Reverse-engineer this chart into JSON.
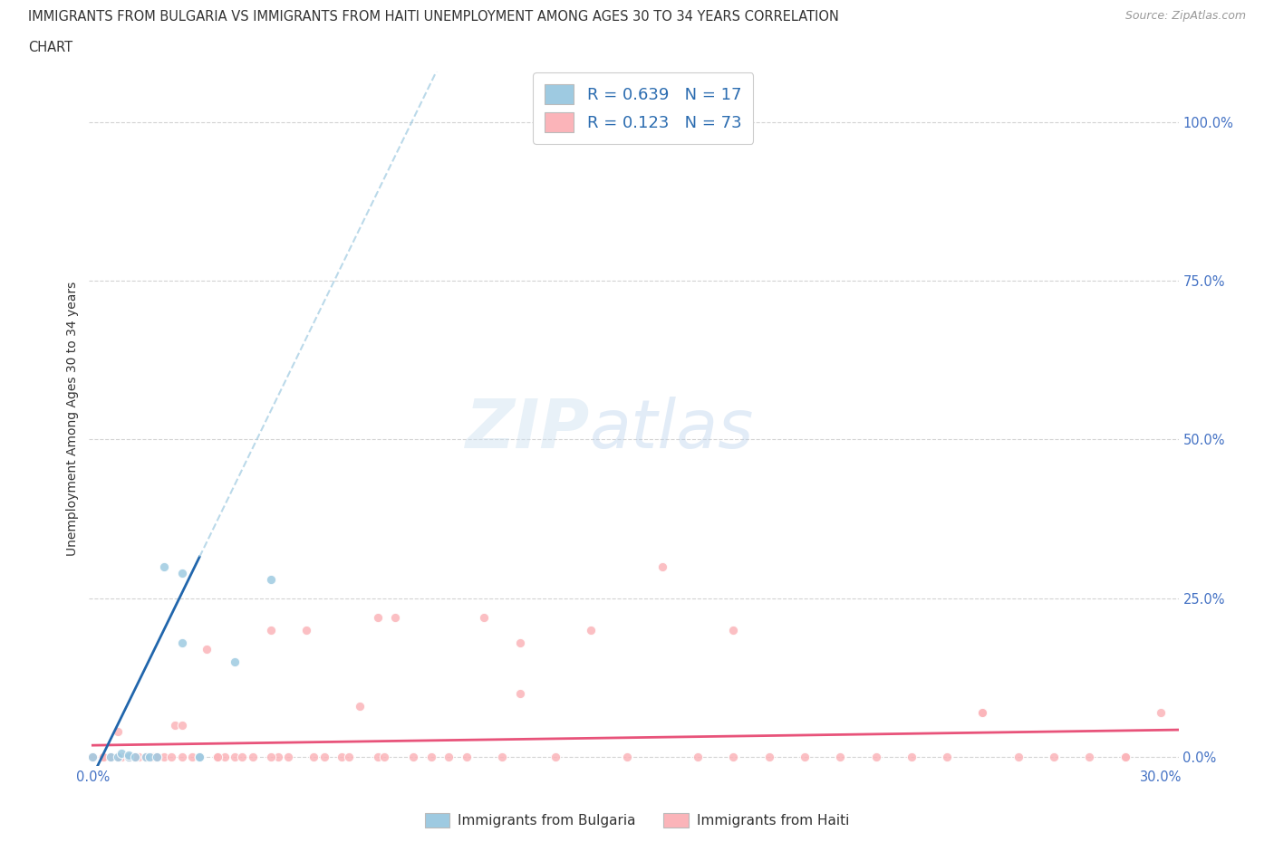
{
  "title_line1": "IMMIGRANTS FROM BULGARIA VS IMMIGRANTS FROM HAITI UNEMPLOYMENT AMONG AGES 30 TO 34 YEARS CORRELATION",
  "title_line2": "CHART",
  "source_text": "Source: ZipAtlas.com",
  "ylabel": "Unemployment Among Ages 30 to 34 years",
  "y_tick_labels": [
    "0.0%",
    "25.0%",
    "50.0%",
    "75.0%",
    "100.0%"
  ],
  "y_tick_values": [
    0.0,
    0.25,
    0.5,
    0.75,
    1.0
  ],
  "xlim": [
    -0.001,
    0.305
  ],
  "ylim": [
    -0.015,
    1.08
  ],
  "bulgaria_color": "#9ecae1",
  "haiti_color": "#fbb4b9",
  "bulgaria_line_color": "#2166ac",
  "haiti_line_color": "#e8537a",
  "bulgaria_R": "0.639",
  "bulgaria_N": "17",
  "haiti_R": "0.123",
  "haiti_N": "73",
  "legend_label_bulgaria": "Immigrants from Bulgaria",
  "legend_label_haiti": "Immigrants from Haiti",
  "background_color": "#ffffff",
  "grid_color": "#c8c8c8",
  "title_color": "#333333",
  "axis_label_color": "#4472c4",
  "legend_text_color": "#2b6cb0",
  "bulgaria_x": [
    0.0,
    0.005,
    0.007,
    0.008,
    0.01,
    0.01,
    0.012,
    0.015,
    0.016,
    0.018,
    0.02,
    0.025,
    0.025,
    0.03,
    0.03,
    0.04,
    0.05
  ],
  "bulgaria_y": [
    0.0,
    0.0,
    0.0,
    0.005,
    0.0,
    0.003,
    0.0,
    0.0,
    0.0,
    0.0,
    0.3,
    0.29,
    0.18,
    0.0,
    0.0,
    0.15,
    0.28
  ],
  "haiti_x": [
    0.0,
    0.003,
    0.005,
    0.007,
    0.008,
    0.01,
    0.01,
    0.012,
    0.013,
    0.015,
    0.017,
    0.018,
    0.02,
    0.022,
    0.023,
    0.025,
    0.028,
    0.03,
    0.032,
    0.035,
    0.037,
    0.04,
    0.042,
    0.045,
    0.05,
    0.052,
    0.055,
    0.06,
    0.062,
    0.065,
    0.07,
    0.072,
    0.075,
    0.08,
    0.082,
    0.085,
    0.09,
    0.095,
    0.1,
    0.105,
    0.11,
    0.115,
    0.12,
    0.13,
    0.14,
    0.15,
    0.16,
    0.17,
    0.18,
    0.19,
    0.2,
    0.21,
    0.22,
    0.23,
    0.24,
    0.25,
    0.26,
    0.27,
    0.28,
    0.29,
    0.3,
    0.003,
    0.007,
    0.012,
    0.018,
    0.025,
    0.035,
    0.05,
    0.08,
    0.12,
    0.18,
    0.25,
    0.29
  ],
  "haiti_y": [
    0.0,
    0.0,
    0.0,
    0.04,
    0.0,
    0.0,
    0.0,
    0.0,
    0.0,
    0.0,
    0.0,
    0.0,
    0.0,
    0.0,
    0.05,
    0.0,
    0.0,
    0.0,
    0.17,
    0.0,
    0.0,
    0.0,
    0.0,
    0.0,
    0.2,
    0.0,
    0.0,
    0.2,
    0.0,
    0.0,
    0.0,
    0.0,
    0.08,
    0.0,
    0.0,
    0.22,
    0.0,
    0.0,
    0.0,
    0.0,
    0.22,
    0.0,
    0.1,
    0.0,
    0.2,
    0.0,
    0.3,
    0.0,
    0.2,
    0.0,
    0.0,
    0.0,
    0.0,
    0.0,
    0.0,
    0.07,
    0.0,
    0.0,
    0.0,
    0.0,
    0.07,
    0.0,
    0.0,
    0.0,
    0.0,
    0.05,
    0.0,
    0.0,
    0.22,
    0.18,
    0.0,
    0.07,
    0.0
  ],
  "bul_reg_slope": 11.5,
  "bul_reg_intercept": -0.03,
  "hai_reg_slope": 0.08,
  "hai_reg_intercept": 0.018
}
